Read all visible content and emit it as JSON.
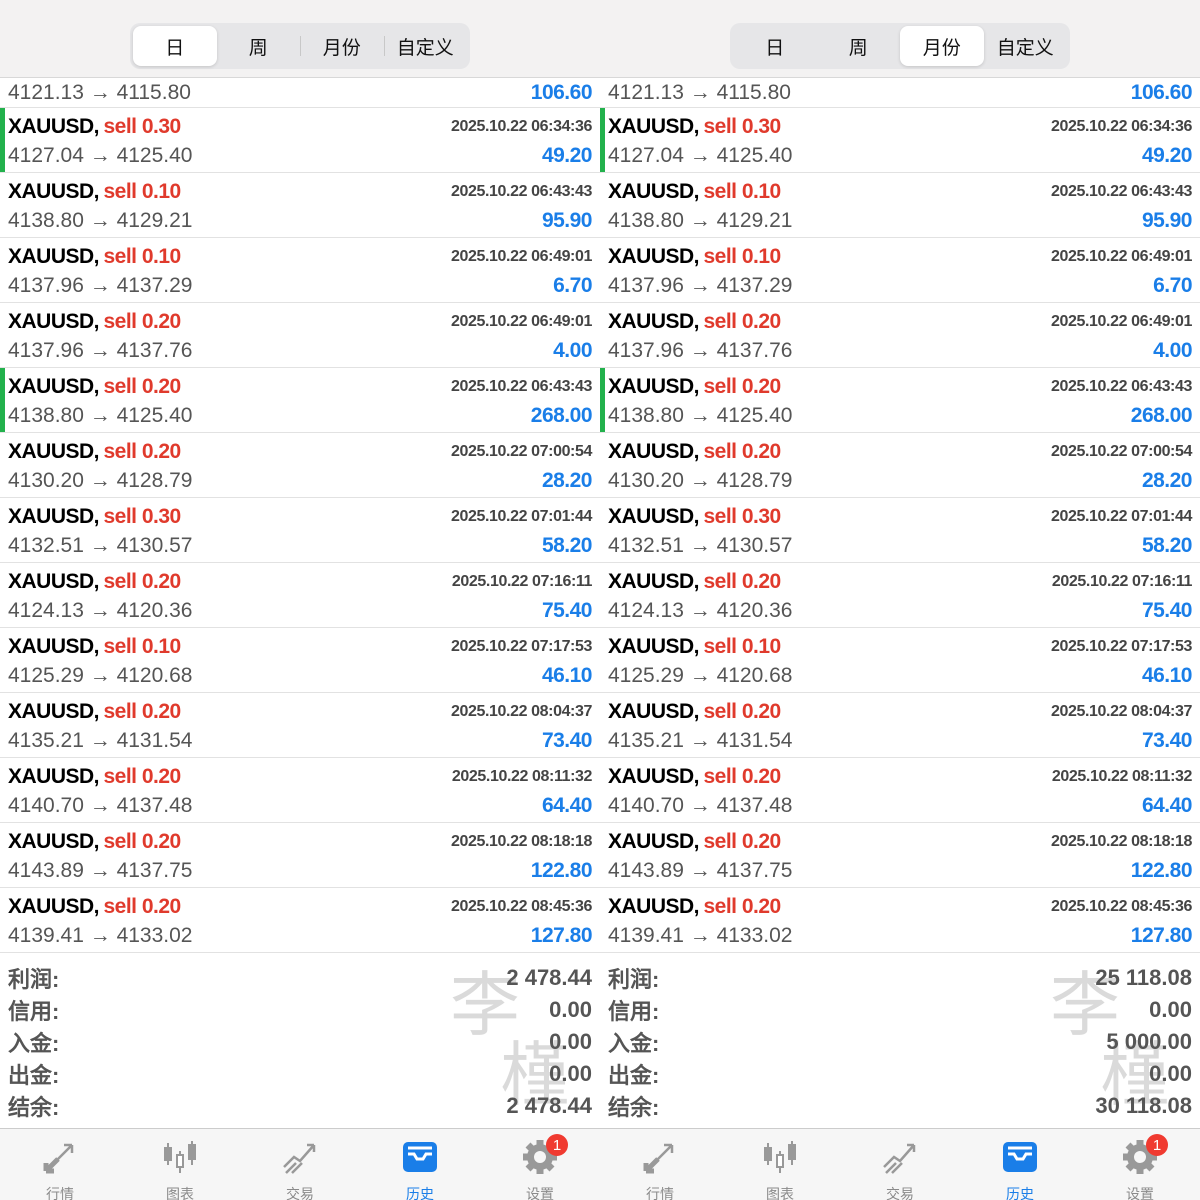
{
  "colors": {
    "sell": "#e03a2c",
    "profit": "#1a7ee8",
    "marker": "#22b14c",
    "active_tab": "#1a7ee8",
    "badge": "#f03a30"
  },
  "period_tabs": [
    "日",
    "周",
    "月份",
    "自定义"
  ],
  "partial_row": {
    "price": "4121.13 → 4115.80",
    "profit": "106.60"
  },
  "trades": [
    {
      "symbol": "XAUUSD,",
      "side": "sell 0.30",
      "time": "2025.10.22 06:34:36",
      "price": "4127.04 → 4125.40",
      "profit": "49.20",
      "marked": true
    },
    {
      "symbol": "XAUUSD,",
      "side": "sell 0.10",
      "time": "2025.10.22 06:43:43",
      "price": "4138.80 → 4129.21",
      "profit": "95.90",
      "marked": false
    },
    {
      "symbol": "XAUUSD,",
      "side": "sell 0.10",
      "time": "2025.10.22 06:49:01",
      "price": "4137.96 → 4137.29",
      "profit": "6.70",
      "marked": false
    },
    {
      "symbol": "XAUUSD,",
      "side": "sell 0.20",
      "time": "2025.10.22 06:49:01",
      "price": "4137.96 → 4137.76",
      "profit": "4.00",
      "marked": false
    },
    {
      "symbol": "XAUUSD,",
      "side": "sell 0.20",
      "time": "2025.10.22 06:43:43",
      "price": "4138.80 → 4125.40",
      "profit": "268.00",
      "marked": true
    },
    {
      "symbol": "XAUUSD,",
      "side": "sell 0.20",
      "time": "2025.10.22 07:00:54",
      "price": "4130.20 → 4128.79",
      "profit": "28.20",
      "marked": false
    },
    {
      "symbol": "XAUUSD,",
      "side": "sell 0.30",
      "time": "2025.10.22 07:01:44",
      "price": "4132.51 → 4130.57",
      "profit": "58.20",
      "marked": false
    },
    {
      "symbol": "XAUUSD,",
      "side": "sell 0.20",
      "time": "2025.10.22 07:16:11",
      "price": "4124.13 → 4120.36",
      "profit": "75.40",
      "marked": false
    },
    {
      "symbol": "XAUUSD,",
      "side": "sell 0.10",
      "time": "2025.10.22 07:17:53",
      "price": "4125.29 → 4120.68",
      "profit": "46.10",
      "marked": false
    },
    {
      "symbol": "XAUUSD,",
      "side": "sell 0.20",
      "time": "2025.10.22 08:04:37",
      "price": "4135.21 → 4131.54",
      "profit": "73.40",
      "marked": false
    },
    {
      "symbol": "XAUUSD,",
      "side": "sell 0.20",
      "time": "2025.10.22 08:11:32",
      "price": "4140.70 → 4137.48",
      "profit": "64.40",
      "marked": false
    },
    {
      "symbol": "XAUUSD,",
      "side": "sell 0.20",
      "time": "2025.10.22 08:18:18",
      "price": "4143.89 → 4137.75",
      "profit": "122.80",
      "marked": false
    },
    {
      "symbol": "XAUUSD,",
      "side": "sell 0.20",
      "time": "2025.10.22 08:45:36",
      "price": "4139.41 → 4133.02",
      "profit": "127.80",
      "marked": false
    }
  ],
  "summary_labels": [
    "利润:",
    "信用:",
    "入金:",
    "出金:",
    "结余:"
  ],
  "panels": [
    {
      "selected_tab": 0,
      "summary": [
        "2 478.44",
        "0.00",
        "0.00",
        "0.00",
        "2 478.44"
      ]
    },
    {
      "selected_tab": 2,
      "summary": [
        "25 118.08",
        "0.00",
        "5 000.00",
        "0.00",
        "30 118.08"
      ]
    }
  ],
  "watermark": "李槿",
  "bottom_tabs": [
    {
      "label": "行情",
      "icon": "quotes-arrows-icon"
    },
    {
      "label": "图表",
      "icon": "candlestick-chart-icon"
    },
    {
      "label": "交易",
      "icon": "trade-trend-icon"
    },
    {
      "label": "历史",
      "icon": "history-inbox-icon",
      "active": true
    },
    {
      "label": "设置",
      "icon": "gear-icon",
      "badge": "1"
    }
  ]
}
